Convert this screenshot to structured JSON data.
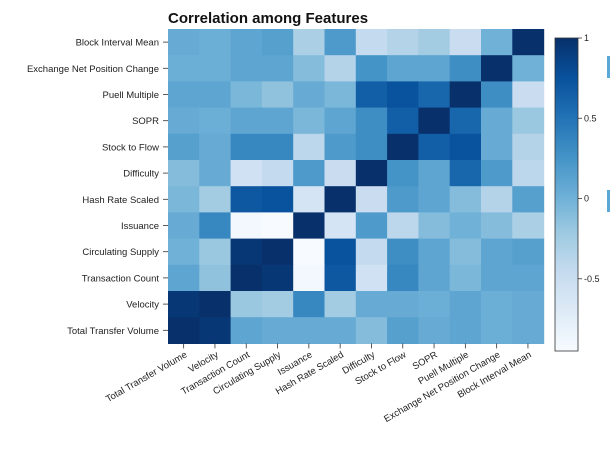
{
  "chart_data": {
    "type": "heatmap",
    "title": "Correlation among Features",
    "rows": [
      "Block Interval Mean",
      "Exchange Net Position Change",
      "Puell Multiple",
      "SOPR",
      "Stock to Flow",
      "Difficulty",
      "Hash Rate Scaled",
      "Issuance",
      "Circulating Supply",
      "Transaction Count",
      "Velocity",
      "Total Transfer Volume"
    ],
    "columns": [
      "Total Transfer Volume",
      "Velocity",
      "Transaction Count",
      "Circulating Supply",
      "Issuance",
      "Hash Rate Scaled",
      "Difficulty",
      "Stock to Flow",
      "SOPR",
      "Puell Multiple",
      "Exchange Net Position Change",
      "Block Interval Mean"
    ],
    "values": [
      [
        0.05,
        0.02,
        0.1,
        0.15,
        -0.3,
        0.2,
        -0.45,
        -0.35,
        -0.25,
        -0.5,
        0.0,
        1.0
      ],
      [
        0.02,
        0.02,
        0.1,
        0.1,
        -0.1,
        -0.35,
        0.25,
        0.1,
        0.1,
        0.3,
        1.0,
        0.0
      ],
      [
        0.1,
        0.1,
        -0.05,
        -0.15,
        0.05,
        -0.05,
        0.65,
        0.75,
        0.6,
        1.0,
        0.3,
        -0.5
      ],
      [
        0.05,
        0.02,
        0.1,
        0.1,
        -0.05,
        0.1,
        0.3,
        0.65,
        1.0,
        0.6,
        0.05,
        -0.2
      ],
      [
        0.15,
        0.05,
        0.35,
        0.35,
        -0.4,
        0.2,
        0.3,
        1.0,
        0.65,
        0.75,
        0.05,
        -0.35
      ],
      [
        -0.1,
        0.05,
        -0.55,
        -0.45,
        0.2,
        -0.5,
        1.0,
        0.25,
        0.1,
        0.6,
        0.2,
        -0.4
      ],
      [
        -0.05,
        -0.25,
        0.7,
        0.75,
        -0.6,
        1.0,
        -0.5,
        0.2,
        0.1,
        -0.1,
        -0.35,
        0.15
      ],
      [
        0.05,
        0.35,
        -0.9,
        -0.95,
        1.0,
        -0.6,
        0.2,
        -0.4,
        -0.1,
        0.0,
        -0.1,
        -0.3
      ],
      [
        0.0,
        -0.2,
        0.95,
        1.0,
        -0.95,
        0.75,
        -0.45,
        0.3,
        0.1,
        -0.1,
        0.1,
        0.15
      ],
      [
        0.1,
        -0.15,
        1.0,
        0.95,
        -0.9,
        0.7,
        -0.55,
        0.35,
        0.1,
        -0.05,
        0.1,
        0.1
      ],
      [
        0.95,
        1.0,
        -0.2,
        -0.25,
        0.35,
        -0.25,
        0.05,
        0.05,
        0.02,
        0.1,
        0.02,
        0.05
      ],
      [
        1.0,
        0.95,
        0.1,
        0.05,
        0.05,
        0.05,
        -0.1,
        0.15,
        0.05,
        0.1,
        0.02,
        0.05
      ]
    ],
    "colorbar": {
      "ticks": [
        "1",
        "0.5",
        "0",
        "-0.5"
      ],
      "tick_values": [
        1,
        0.5,
        0,
        -0.5
      ],
      "range": [
        -0.95,
        1.0
      ]
    },
    "colorscale": [
      "#f7fbff",
      "#deebf7",
      "#c6dbef",
      "#9ecae1",
      "#6baed6",
      "#4292c6",
      "#2171b5",
      "#08519c",
      "#08306b"
    ]
  }
}
